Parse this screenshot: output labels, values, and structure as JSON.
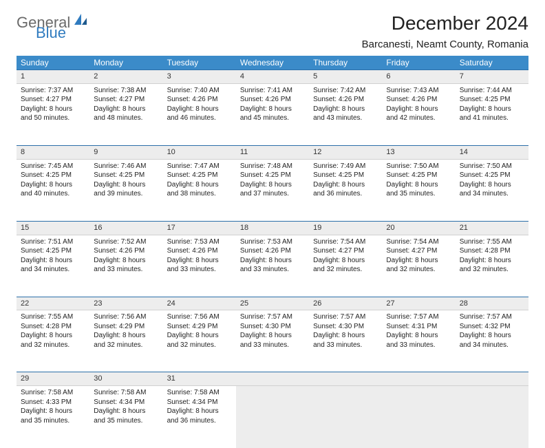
{
  "logo": {
    "top": "General",
    "bottom": "Blue"
  },
  "title": "December 2024",
  "location": "Barcanesti, Neamt County, Romania",
  "colors": {
    "header_bg": "#3b8bc9",
    "row_border": "#2a6ea8",
    "daynum_bg": "#ededed",
    "logo_gray": "#6a6a6a",
    "logo_blue": "#2f7bbf"
  },
  "weekdays": [
    "Sunday",
    "Monday",
    "Tuesday",
    "Wednesday",
    "Thursday",
    "Friday",
    "Saturday"
  ],
  "weeks": [
    [
      {
        "n": "1",
        "sr": "7:37 AM",
        "ss": "4:27 PM",
        "dl": "8 hours and 50 minutes."
      },
      {
        "n": "2",
        "sr": "7:38 AM",
        "ss": "4:27 PM",
        "dl": "8 hours and 48 minutes."
      },
      {
        "n": "3",
        "sr": "7:40 AM",
        "ss": "4:26 PM",
        "dl": "8 hours and 46 minutes."
      },
      {
        "n": "4",
        "sr": "7:41 AM",
        "ss": "4:26 PM",
        "dl": "8 hours and 45 minutes."
      },
      {
        "n": "5",
        "sr": "7:42 AM",
        "ss": "4:26 PM",
        "dl": "8 hours and 43 minutes."
      },
      {
        "n": "6",
        "sr": "7:43 AM",
        "ss": "4:26 PM",
        "dl": "8 hours and 42 minutes."
      },
      {
        "n": "7",
        "sr": "7:44 AM",
        "ss": "4:25 PM",
        "dl": "8 hours and 41 minutes."
      }
    ],
    [
      {
        "n": "8",
        "sr": "7:45 AM",
        "ss": "4:25 PM",
        "dl": "8 hours and 40 minutes."
      },
      {
        "n": "9",
        "sr": "7:46 AM",
        "ss": "4:25 PM",
        "dl": "8 hours and 39 minutes."
      },
      {
        "n": "10",
        "sr": "7:47 AM",
        "ss": "4:25 PM",
        "dl": "8 hours and 38 minutes."
      },
      {
        "n": "11",
        "sr": "7:48 AM",
        "ss": "4:25 PM",
        "dl": "8 hours and 37 minutes."
      },
      {
        "n": "12",
        "sr": "7:49 AM",
        "ss": "4:25 PM",
        "dl": "8 hours and 36 minutes."
      },
      {
        "n": "13",
        "sr": "7:50 AM",
        "ss": "4:25 PM",
        "dl": "8 hours and 35 minutes."
      },
      {
        "n": "14",
        "sr": "7:50 AM",
        "ss": "4:25 PM",
        "dl": "8 hours and 34 minutes."
      }
    ],
    [
      {
        "n": "15",
        "sr": "7:51 AM",
        "ss": "4:25 PM",
        "dl": "8 hours and 34 minutes."
      },
      {
        "n": "16",
        "sr": "7:52 AM",
        "ss": "4:26 PM",
        "dl": "8 hours and 33 minutes."
      },
      {
        "n": "17",
        "sr": "7:53 AM",
        "ss": "4:26 PM",
        "dl": "8 hours and 33 minutes."
      },
      {
        "n": "18",
        "sr": "7:53 AM",
        "ss": "4:26 PM",
        "dl": "8 hours and 33 minutes."
      },
      {
        "n": "19",
        "sr": "7:54 AM",
        "ss": "4:27 PM",
        "dl": "8 hours and 32 minutes."
      },
      {
        "n": "20",
        "sr": "7:54 AM",
        "ss": "4:27 PM",
        "dl": "8 hours and 32 minutes."
      },
      {
        "n": "21",
        "sr": "7:55 AM",
        "ss": "4:28 PM",
        "dl": "8 hours and 32 minutes."
      }
    ],
    [
      {
        "n": "22",
        "sr": "7:55 AM",
        "ss": "4:28 PM",
        "dl": "8 hours and 32 minutes."
      },
      {
        "n": "23",
        "sr": "7:56 AM",
        "ss": "4:29 PM",
        "dl": "8 hours and 32 minutes."
      },
      {
        "n": "24",
        "sr": "7:56 AM",
        "ss": "4:29 PM",
        "dl": "8 hours and 32 minutes."
      },
      {
        "n": "25",
        "sr": "7:57 AM",
        "ss": "4:30 PM",
        "dl": "8 hours and 33 minutes."
      },
      {
        "n": "26",
        "sr": "7:57 AM",
        "ss": "4:30 PM",
        "dl": "8 hours and 33 minutes."
      },
      {
        "n": "27",
        "sr": "7:57 AM",
        "ss": "4:31 PM",
        "dl": "8 hours and 33 minutes."
      },
      {
        "n": "28",
        "sr": "7:57 AM",
        "ss": "4:32 PM",
        "dl": "8 hours and 34 minutes."
      }
    ],
    [
      {
        "n": "29",
        "sr": "7:58 AM",
        "ss": "4:33 PM",
        "dl": "8 hours and 35 minutes."
      },
      {
        "n": "30",
        "sr": "7:58 AM",
        "ss": "4:34 PM",
        "dl": "8 hours and 35 minutes."
      },
      {
        "n": "31",
        "sr": "7:58 AM",
        "ss": "4:34 PM",
        "dl": "8 hours and 36 minutes."
      },
      null,
      null,
      null,
      null
    ]
  ],
  "labels": {
    "sunrise": "Sunrise: ",
    "sunset": "Sunset: ",
    "daylight": "Daylight: "
  }
}
